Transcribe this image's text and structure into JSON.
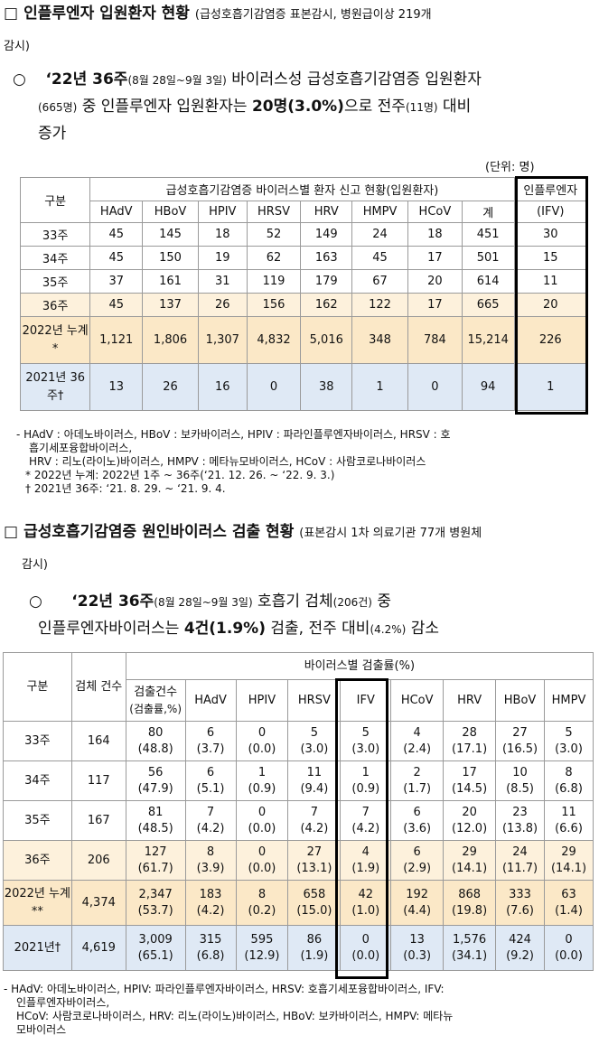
{
  "section1": {
    "box": "□",
    "title": "인플루엔자 입원환자 현황",
    "sub": "(급성호흡기감염증 표본감시, 병원급이상 219개",
    "sub_cont": "감시)"
  },
  "para1": {
    "bullet": "○",
    "week_bold": "‘22년 36주",
    "period": "(8월 28일~9월 3일)",
    "text1": " 바이러스성 급성호흡기감염증 입원환자",
    "line2_pre": "(665명)",
    "line2_mid": " 중 인플루엔자 입원환자는 ",
    "line2_bold": "20명(3.0%)",
    "line2_post1": "으로 전주",
    "line2_prev": "(11명)",
    "line2_post2": " 대비",
    "line3": "증가"
  },
  "unit": "(단위: 명)",
  "table1": {
    "col_gubun": "구분",
    "group_header": "급성호흡기감염증 바이러스별 환자 신고 현황(입원환자)",
    "ifv_header": "인플루엔자",
    "ifv_sub": "(IFV)",
    "cols": [
      "HAdV",
      "HBoV",
      "HPIV",
      "HRSV",
      "HRV",
      "HMPV",
      "HCoV",
      "계"
    ],
    "rows": [
      {
        "label": "33주",
        "values": [
          "45",
          "145",
          "18",
          "52",
          "149",
          "24",
          "18",
          "451"
        ],
        "ifv": "30"
      },
      {
        "label": "34주",
        "values": [
          "45",
          "150",
          "19",
          "62",
          "163",
          "45",
          "17",
          "501"
        ],
        "ifv": "15"
      },
      {
        "label": "35주",
        "values": [
          "37",
          "161",
          "31",
          "119",
          "179",
          "67",
          "20",
          "614"
        ],
        "ifv": "11"
      },
      {
        "label": "36주",
        "values": [
          "45",
          "137",
          "26",
          "156",
          "162",
          "122",
          "17",
          "665"
        ],
        "ifv": "20"
      },
      {
        "label": "2022년 누계*",
        "values": [
          "1,121",
          "1,806",
          "1,307",
          "4,832",
          "5,016",
          "348",
          "784",
          "15,214"
        ],
        "ifv": "226"
      },
      {
        "label": "2021년 36주†",
        "values": [
          "13",
          "26",
          "16",
          "0",
          "38",
          "1",
          "0",
          "94"
        ],
        "ifv": "1"
      }
    ]
  },
  "notes1": [
    "- HAdV : 아데노바이러스, HBoV : 보카바이러스, HPIV : 파라인플루엔자바이러스, HRSV : 호",
    "흡기세포융합바이러스,",
    "HRV : 리노(라이노)바이러스, HMPV : 메타뉴모바이러스, HCoV : 사람코로나바이러스",
    "* 2022년 누계: 2022년 1주 ~ 36주(‘21. 12. 26. ~ ‘22. 9. 3.)",
    "† 2021년 36주: ‘21. 8. 29. ~ ‘21. 9. 4."
  ],
  "section2": {
    "box": "□",
    "title": "급성호흡기감염증 원인바이러스 검출 현황",
    "sub": "(표본감시 1차 의료기관 77개 병원체",
    "sub_cont": "감시)"
  },
  "para2": {
    "bullet": "○",
    "week_bold": "‘22년 36주",
    "period": "(8월 28일~9월 3일)",
    "text1": " 호흡기 검체",
    "count": "(206건)",
    "text2": " 중",
    "line2_pre": "인플루엔자바이러스는 ",
    "line2_bold": "4건(1.9%)",
    "line2_mid": " 검출, 전주 대비",
    "line2_prev": "(4.2%)",
    "line2_post": " 감소"
  },
  "table2": {
    "col_gubun": "구분",
    "col_specimen": "검체 건수",
    "group_header": "바이러스별 검출률(%)",
    "col_detect": "검출건수",
    "col_detect_sub": "(검출률,%)",
    "cols": [
      "HAdV",
      "HPIV",
      "HRSV",
      "IFV",
      "HCoV",
      "HRV",
      "HBoV",
      "HMPV"
    ],
    "rows": [
      {
        "label": "33주",
        "specimen": "164",
        "detect": [
          "80",
          "(48.8)"
        ],
        "cells": [
          [
            "6",
            "(3.7)"
          ],
          [
            "0",
            "(0.0)"
          ],
          [
            "5",
            "(3.0)"
          ],
          [
            "5",
            "(3.0)"
          ],
          [
            "4",
            "(2.4)"
          ],
          [
            "28",
            "(17.1)"
          ],
          [
            "27",
            "(16.5)"
          ],
          [
            "5",
            "(3.0)"
          ]
        ]
      },
      {
        "label": "34주",
        "specimen": "117",
        "detect": [
          "56",
          "(47.9)"
        ],
        "cells": [
          [
            "6",
            "(5.1)"
          ],
          [
            "1",
            "(0.9)"
          ],
          [
            "11",
            "(9.4)"
          ],
          [
            "1",
            "(0.9)"
          ],
          [
            "2",
            "(1.7)"
          ],
          [
            "17",
            "(14.5)"
          ],
          [
            "10",
            "(8.5)"
          ],
          [
            "8",
            "(6.8)"
          ]
        ]
      },
      {
        "label": "35주",
        "specimen": "167",
        "detect": [
          "81",
          "(48.5)"
        ],
        "cells": [
          [
            "7",
            "(4.2)"
          ],
          [
            "0",
            "(0.0)"
          ],
          [
            "7",
            "(4.2)"
          ],
          [
            "7",
            "(4.2)"
          ],
          [
            "6",
            "(3.6)"
          ],
          [
            "20",
            "(12.0)"
          ],
          [
            "23",
            "(13.8)"
          ],
          [
            "11",
            "(6.6)"
          ]
        ]
      },
      {
        "label": "36주",
        "specimen": "206",
        "detect": [
          "127",
          "(61.7)"
        ],
        "cells": [
          [
            "8",
            "(3.9)"
          ],
          [
            "0",
            "(0.0)"
          ],
          [
            "27",
            "(13.1)"
          ],
          [
            "4",
            "(1.9)"
          ],
          [
            "6",
            "(2.9)"
          ],
          [
            "29",
            "(14.1)"
          ],
          [
            "24",
            "(11.7)"
          ],
          [
            "29",
            "(14.1)"
          ]
        ]
      },
      {
        "label": "2022년 누계**",
        "specimen": "4,374",
        "detect": [
          "2,347",
          "(53.7)"
        ],
        "cells": [
          [
            "183",
            "(4.2)"
          ],
          [
            "8",
            "(0.2)"
          ],
          [
            "658",
            "(15.0)"
          ],
          [
            "42",
            "(1.0)"
          ],
          [
            "192",
            "(4.4)"
          ],
          [
            "868",
            "(19.8)"
          ],
          [
            "333",
            "(7.6)"
          ],
          [
            "63",
            "(1.4)"
          ]
        ]
      },
      {
        "label": "2021년†",
        "specimen": "4,619",
        "detect": [
          "3,009",
          "(65.1)"
        ],
        "cells": [
          [
            "315",
            "(6.8)"
          ],
          [
            "595",
            "(12.9)"
          ],
          [
            "86",
            "(1.9)"
          ],
          [
            "0",
            "(0.0)"
          ],
          [
            "13",
            "(0.3)"
          ],
          [
            "1,576",
            "(34.1)"
          ],
          [
            "424",
            "(9.2)"
          ],
          [
            "0",
            "(0.0)"
          ]
        ]
      }
    ]
  },
  "notes2": [
    "- HAdV: 아데노바이러스, HPIV: 파라인플루엔자바이러스, HRSV: 호흡기세포융합바이러스, IFV:",
    "인플루엔자바이러스,",
    "HCoV: 사람코로나바이러스, HRV: 리노(라이노)바이러스, HBoV: 보카바이러스, HMPV: 메타뉴",
    "모바이러스"
  ]
}
